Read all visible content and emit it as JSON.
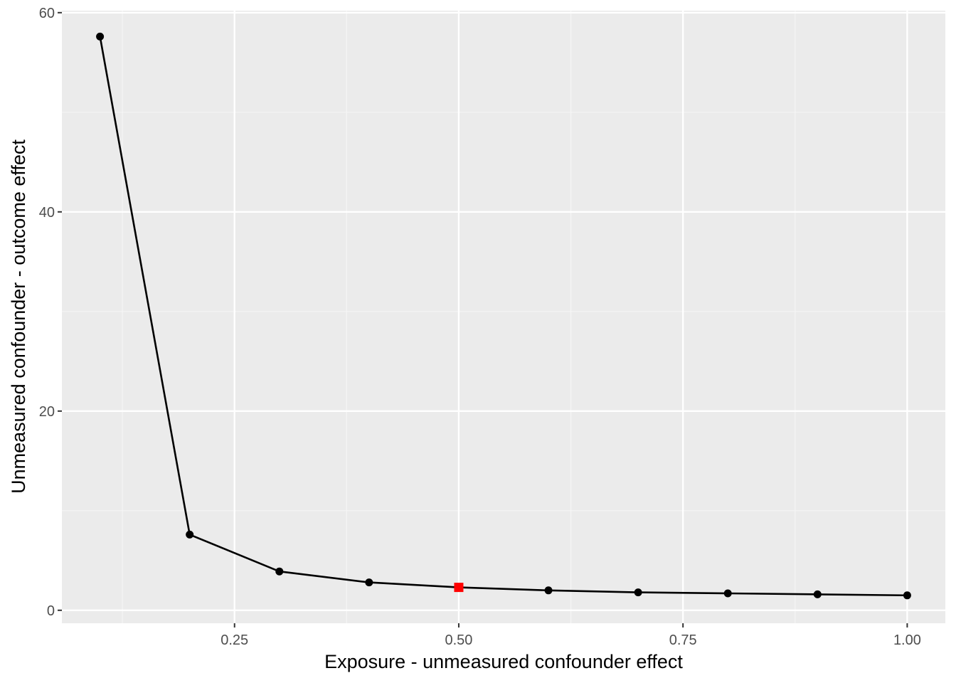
{
  "chart_data": {
    "type": "line",
    "title": "",
    "xlabel": "Exposure - unmeasured confounder effect",
    "ylabel": "Unmeasured confounder - outcome effect",
    "xlim": [
      0.0575,
      1.0425
    ],
    "ylim": [
      -1.3,
      60.2
    ],
    "x_ticks": [
      0.25,
      0.5,
      0.75,
      1.0
    ],
    "x_tick_labels": [
      "0.25",
      "0.50",
      "0.75",
      "1.00"
    ],
    "y_ticks": [
      0,
      20,
      40,
      60
    ],
    "y_tick_labels": [
      "0",
      "20",
      "40",
      "60"
    ],
    "x_minor_grid": [
      0.125,
      0.375,
      0.625,
      0.875
    ],
    "y_minor_grid": [
      10,
      30,
      50
    ],
    "grid": true,
    "legend": "none",
    "series": [
      {
        "x": [
          0.1,
          0.2,
          0.3,
          0.4,
          0.5,
          0.6,
          0.7,
          0.8,
          0.9,
          1.0
        ],
        "y": [
          57.6,
          7.6,
          3.9,
          2.8,
          2.3,
          2.0,
          1.8,
          1.7,
          1.6,
          1.5
        ],
        "color": "#000000"
      }
    ],
    "highlight": {
      "x": 0.5,
      "y": 2.3,
      "color": "#ff0000",
      "shape": "square"
    },
    "colors": {
      "panel": "#ebebeb",
      "grid_major": "#ffffff",
      "grid_minor": "#f5f5f5",
      "tick": "#333333"
    }
  }
}
